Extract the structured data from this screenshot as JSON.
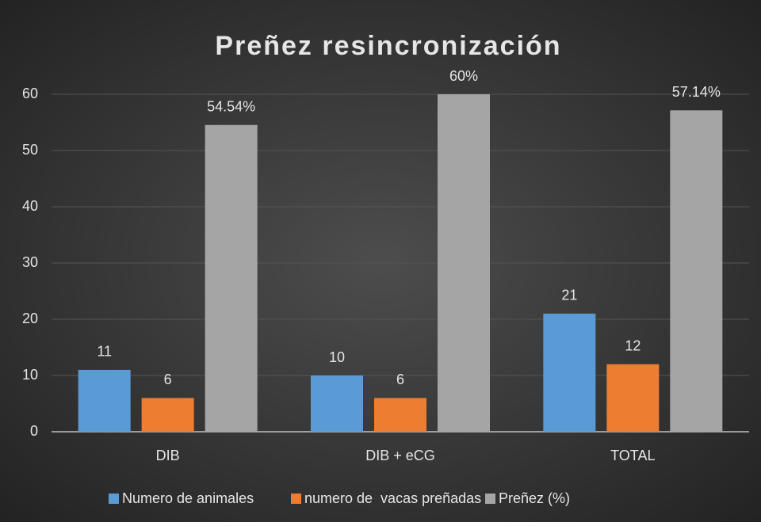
{
  "chart_data": {
    "type": "bar",
    "title": "Preñez resincronización",
    "categories": [
      "DIB",
      "DIB + eCG",
      "TOTAL"
    ],
    "series": [
      {
        "name": "Numero de animales",
        "color": "#5b9bd5",
        "values": [
          11,
          10,
          21
        ]
      },
      {
        "name": "numero de  vacas preñadas",
        "color": "#ed7d31",
        "values": [
          6,
          6,
          12
        ]
      },
      {
        "name": "Preñez (%)",
        "color": "#a5a5a5",
        "values": [
          54.54,
          60,
          57.14
        ],
        "value_labels": [
          "54.54%",
          "60%",
          "57.14%"
        ]
      }
    ],
    "ylim": [
      0,
      60
    ],
    "yticks": [
      0,
      10,
      20,
      30,
      40,
      50,
      60
    ],
    "grid": true,
    "legend": "bottom"
  }
}
